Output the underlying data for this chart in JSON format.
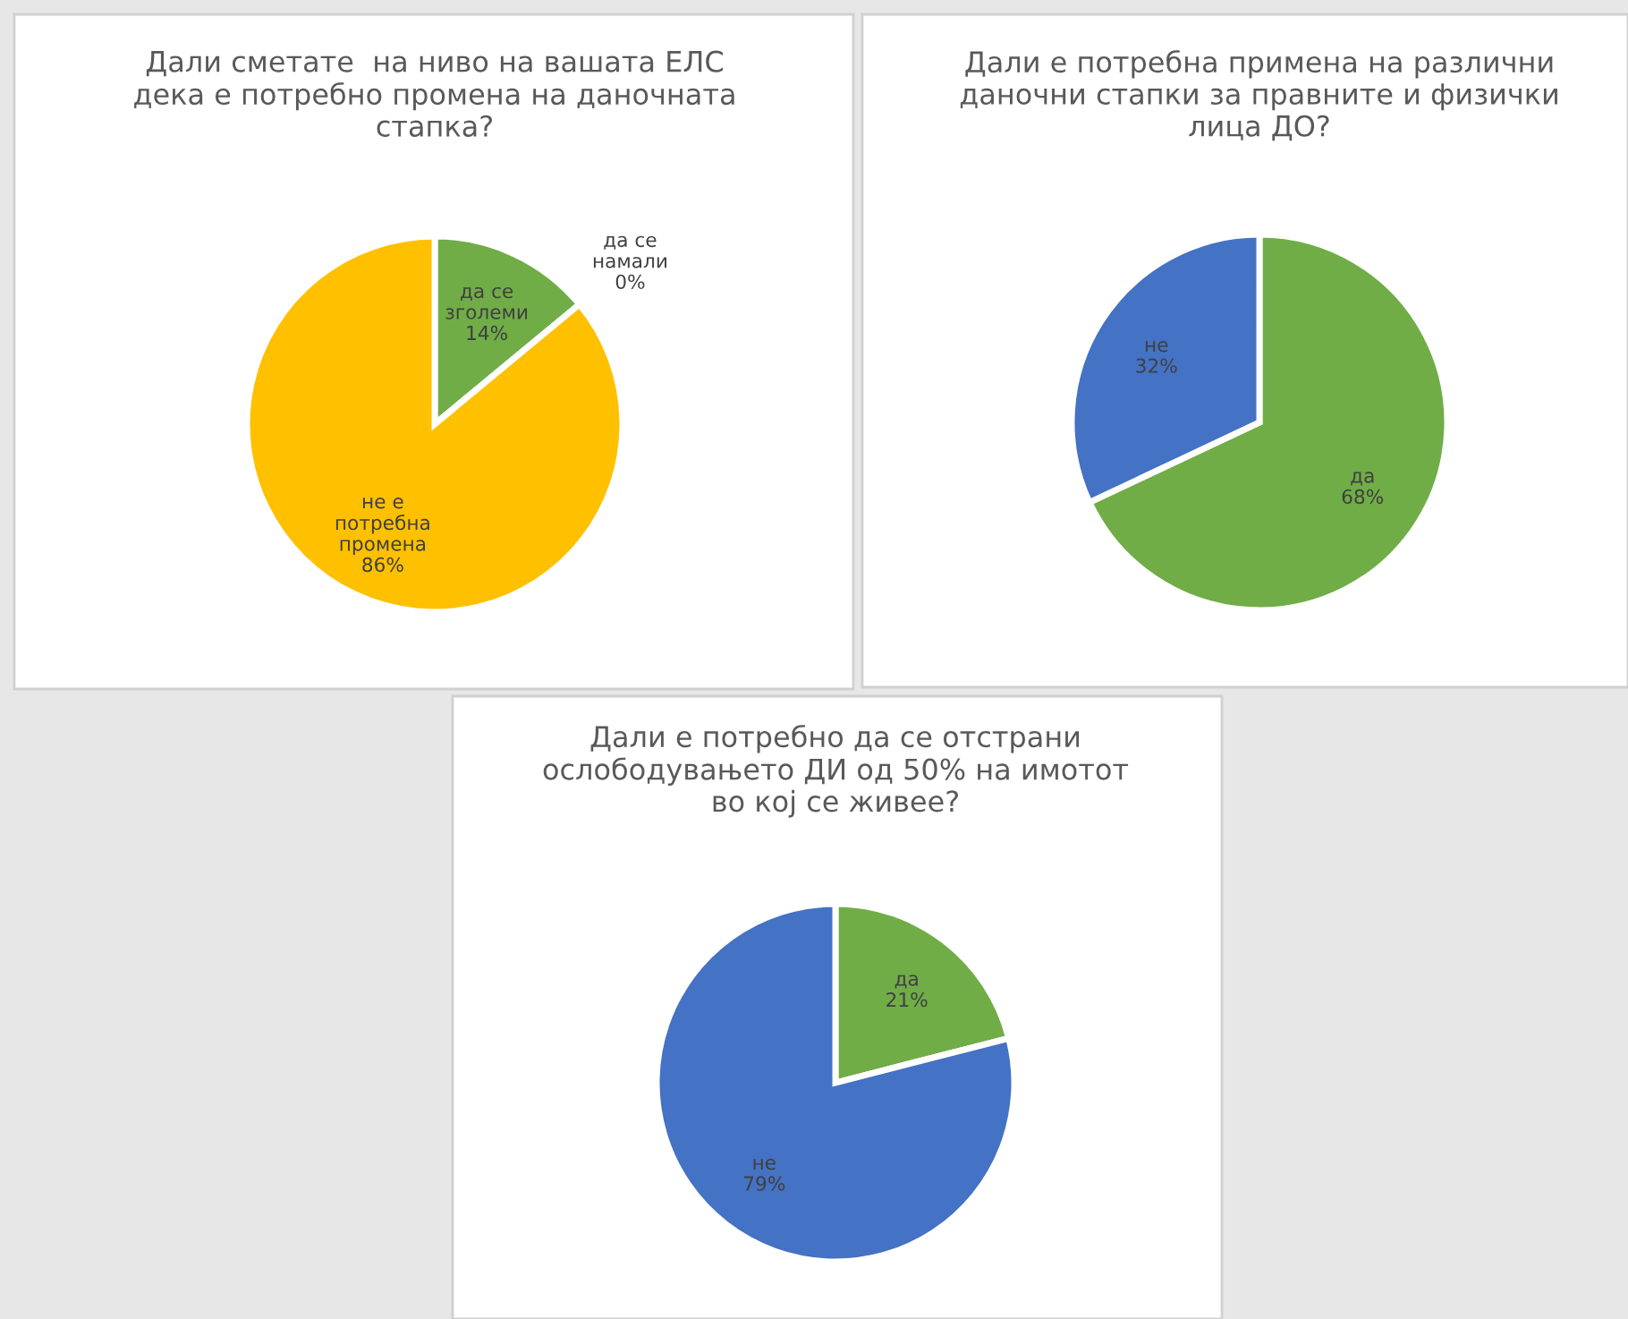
{
  "chart_data": [
    {
      "type": "pie",
      "title": "Дали сметате  на ниво на вашата ЕЛС\nдека е потребно промена на даночната\nстапка?",
      "categories": [
        "да се\nзголеми",
        "да се\nнамали",
        "не е\nпотребна\nпромена"
      ],
      "values": [
        14,
        0,
        86
      ],
      "colors": [
        "#70ad47",
        "#ed7d31",
        "#ffc000"
      ],
      "value_labels": [
        "14%",
        "0%",
        "86%"
      ]
    },
    {
      "type": "pie",
      "title": "Дали е потребна примена на различни\nданочни стапки за правните и физички\nлица ДО?",
      "categories": [
        "да",
        "не"
      ],
      "values": [
        68,
        32
      ],
      "colors": [
        "#70ad47",
        "#4472c4"
      ],
      "value_labels": [
        "68%",
        "32%"
      ]
    },
    {
      "type": "pie",
      "title": "Дали е потребно да се отстрани\nослободувањето ДИ од 50% на имотот\nво кој се живее?",
      "categories": [
        "да",
        "не"
      ],
      "values": [
        21,
        79
      ],
      "colors": [
        "#70ad47",
        "#4472c4"
      ],
      "value_labels": [
        "21%",
        "79%"
      ]
    }
  ]
}
